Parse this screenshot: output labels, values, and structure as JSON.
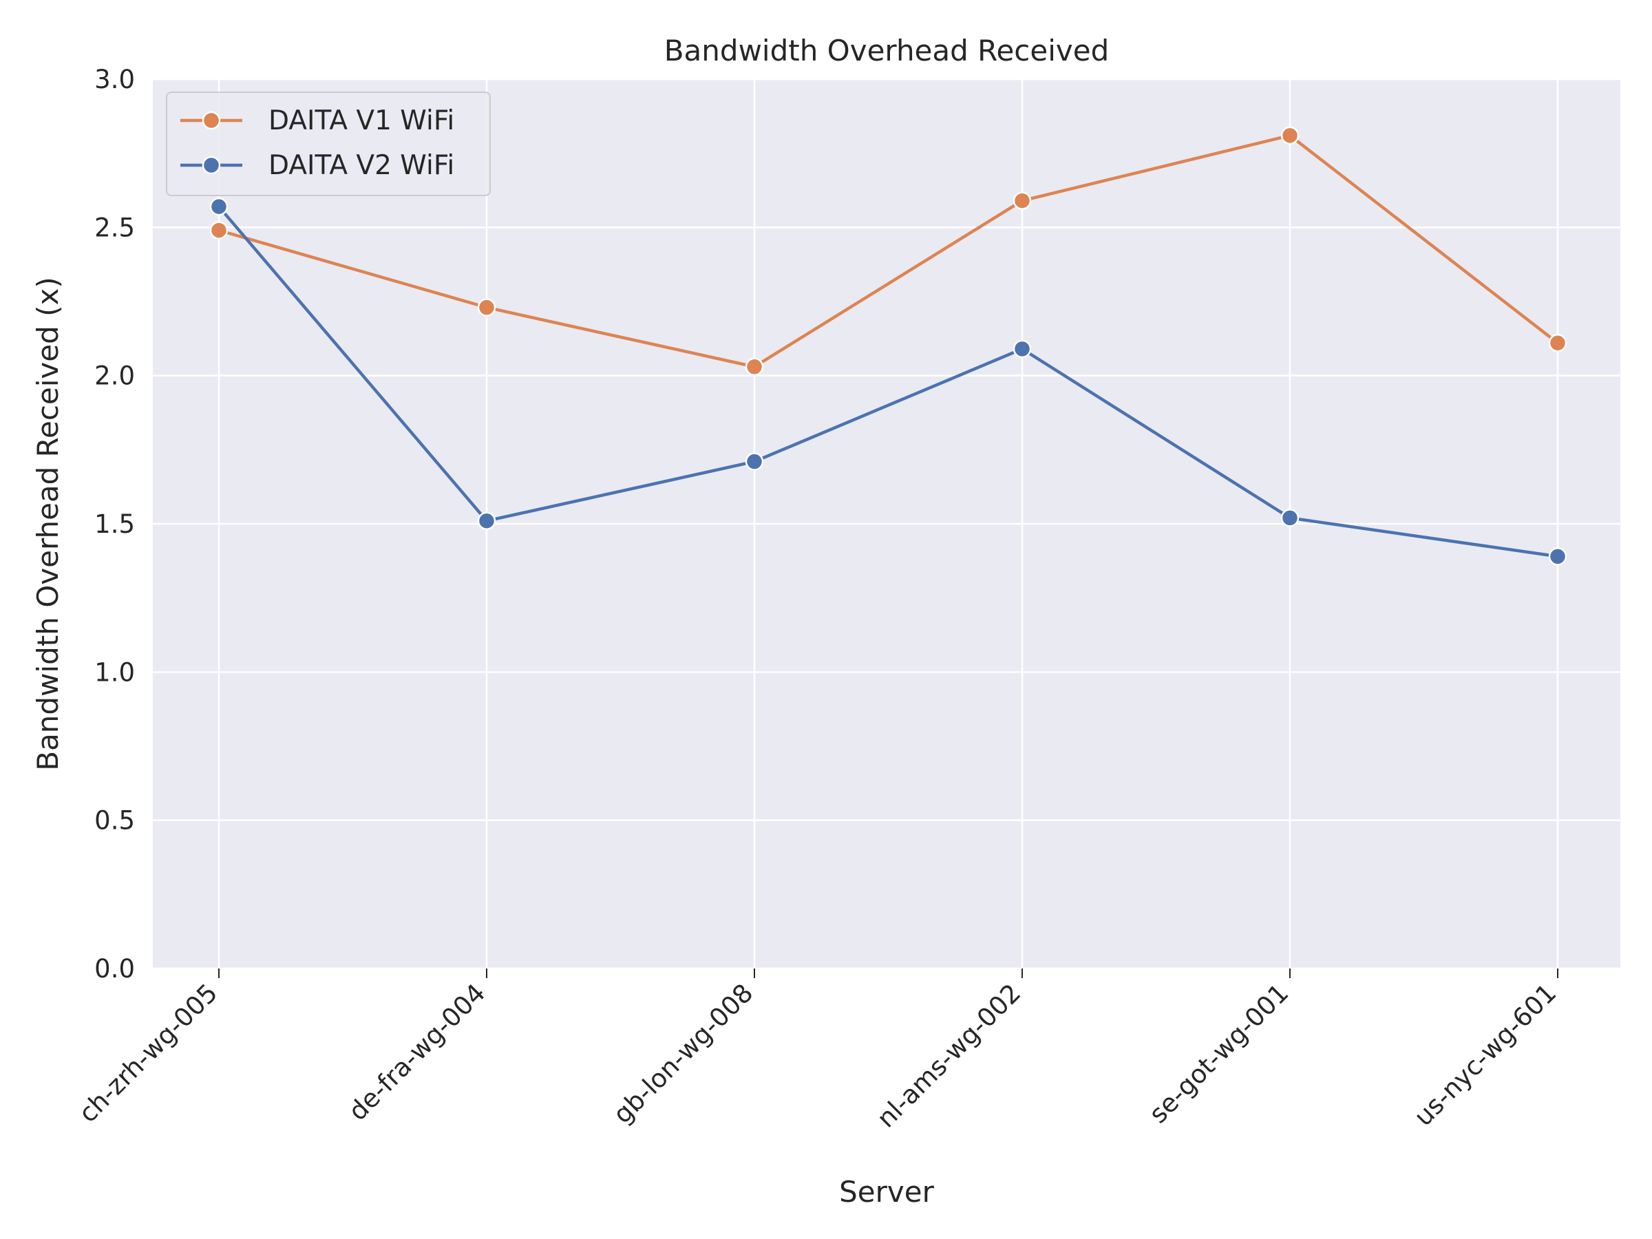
{
  "chart_data": {
    "type": "line",
    "title": "Bandwidth Overhead Received",
    "xlabel": "Server",
    "ylabel": "Bandwidth Overhead Received (x)",
    "categories": [
      "ch-zrh-wg-005",
      "de-fra-wg-004",
      "gb-lon-wg-008",
      "nl-ams-wg-002",
      "se-got-wg-001",
      "us-nyc-wg-601"
    ],
    "ylim": [
      0,
      3.0
    ],
    "yticks": [
      "0.0",
      "0.5",
      "1.0",
      "1.5",
      "2.0",
      "2.5",
      "3.0"
    ],
    "grid": true,
    "legend_position": "top-left",
    "series": [
      {
        "name": "DAITA V1 WiFi",
        "color": "#dd8452",
        "values": [
          2.49,
          2.23,
          2.03,
          2.59,
          2.81,
          2.11
        ]
      },
      {
        "name": "DAITA V2 WiFi",
        "color": "#4c72b0",
        "values": [
          2.57,
          1.51,
          1.71,
          2.09,
          1.52,
          1.39
        ]
      }
    ],
    "plot_background": "#eaeaf2",
    "grid_color": "#ffffff"
  }
}
